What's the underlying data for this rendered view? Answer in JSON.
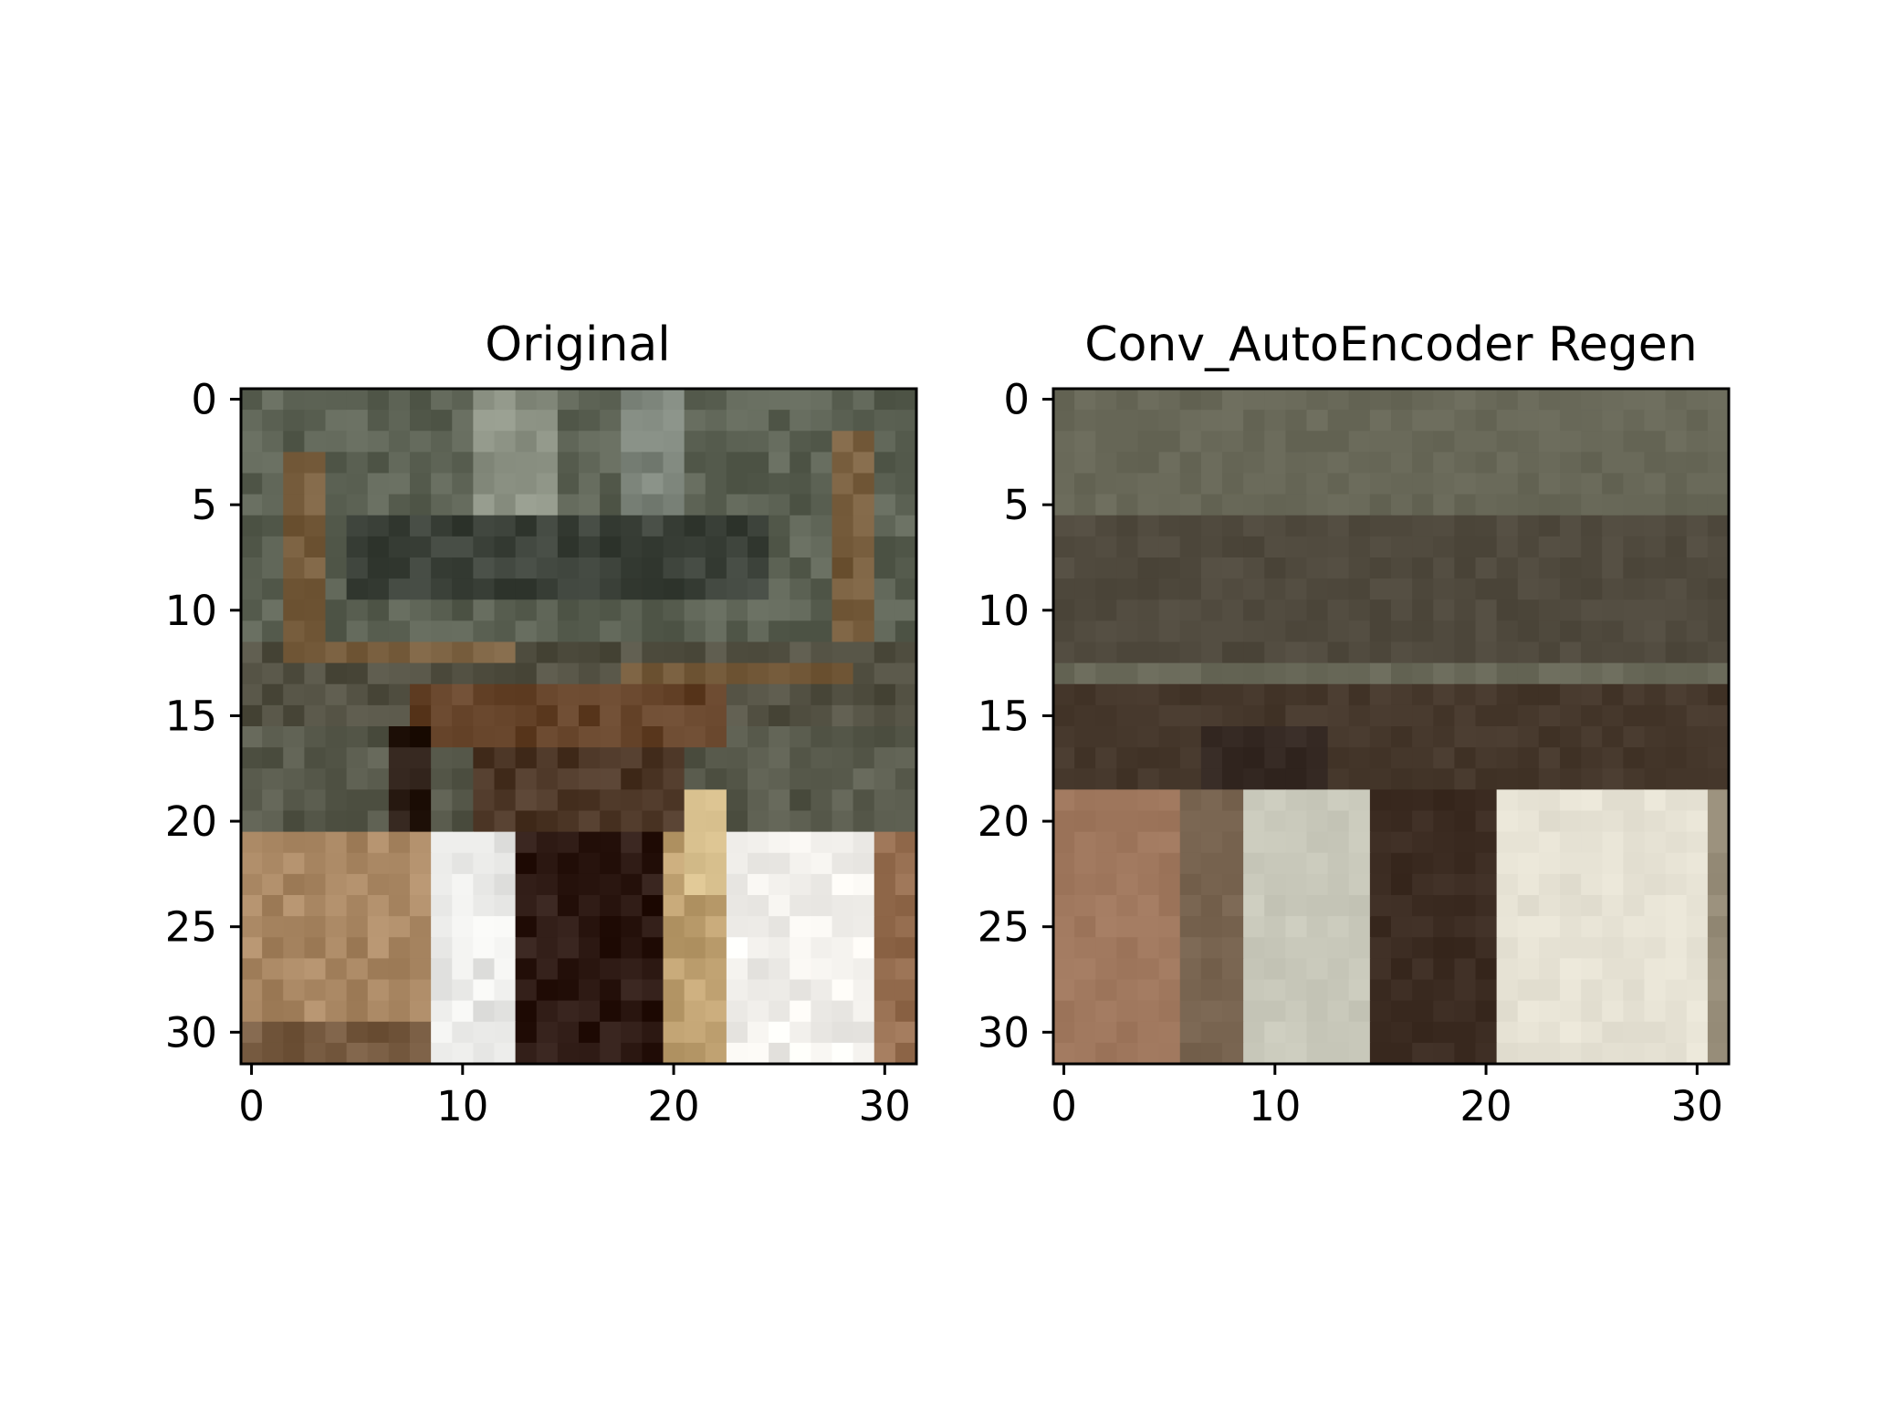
{
  "figure": {
    "background": "#ffffff"
  },
  "chart_data": [
    {
      "type": "heatmap",
      "title": "Original",
      "xlabel": "",
      "ylabel": "",
      "grid": false,
      "image_shape": [
        32,
        32,
        3
      ],
      "xlim": [
        -0.5,
        31.5
      ],
      "ylim": [
        31.5,
        -0.5
      ],
      "x_ticks": [
        0,
        10,
        20,
        30
      ],
      "y_ticks": [
        0,
        5,
        10,
        15,
        20,
        25,
        30
      ]
    },
    {
      "type": "heatmap",
      "title": "Conv_AutoEncoder Regen",
      "xlabel": "",
      "ylabel": "",
      "grid": false,
      "image_shape": [
        32,
        32,
        3
      ],
      "xlim": [
        -0.5,
        31.5
      ],
      "ylim": [
        31.5,
        -0.5
      ],
      "x_ticks": [
        0,
        10,
        20,
        30
      ],
      "y_ticks": [
        0,
        5,
        10,
        15,
        20,
        25,
        30
      ]
    }
  ]
}
